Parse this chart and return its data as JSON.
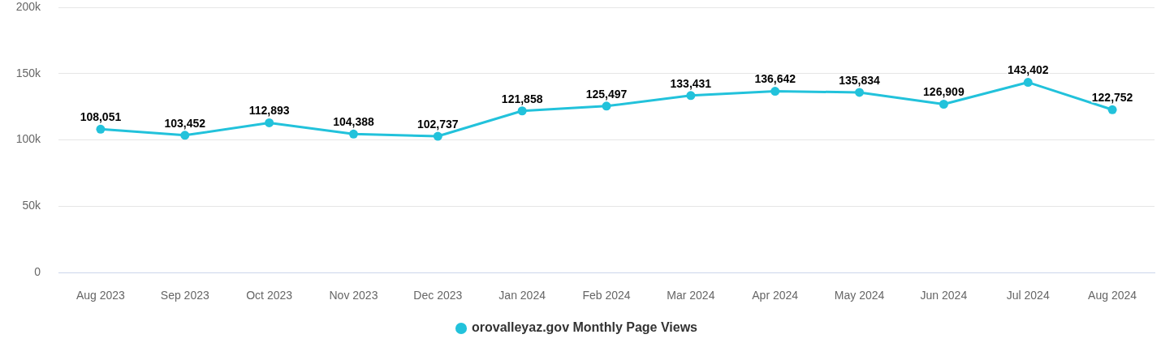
{
  "chart_data": {
    "type": "line",
    "categories": [
      "Aug 2023",
      "Sep 2023",
      "Oct 2023",
      "Nov 2023",
      "Dec 2023",
      "Jan 2024",
      "Feb 2024",
      "Mar 2024",
      "Apr 2024",
      "May 2024",
      "Jun 2024",
      "Jul 2024",
      "Aug 2024"
    ],
    "series": [
      {
        "name": "orovalleyaz.gov Monthly Page Views",
        "color": "#22c2db",
        "values": [
          108051,
          103452,
          112893,
          104388,
          102737,
          121858,
          125497,
          133431,
          136642,
          135834,
          126909,
          143402,
          122752
        ],
        "value_labels": [
          "108,051",
          "103,452",
          "112,893",
          "104,388",
          "102,737",
          "121,858",
          "125,497",
          "133,431",
          "136,642",
          "135,834",
          "126,909",
          "143,402",
          "122,752"
        ]
      }
    ],
    "ylim": [
      0,
      200000
    ],
    "yticks": [
      0,
      {
        "value": 50000,
        "label": "50k"
      },
      {
        "value": 100000,
        "label": "100k"
      },
      {
        "value": 150000,
        "label": "150k"
      },
      {
        "value": 200000,
        "label": "200k"
      }
    ],
    "grid": "y",
    "legend": "bottom",
    "marker": "circle",
    "line_style": "solid"
  }
}
